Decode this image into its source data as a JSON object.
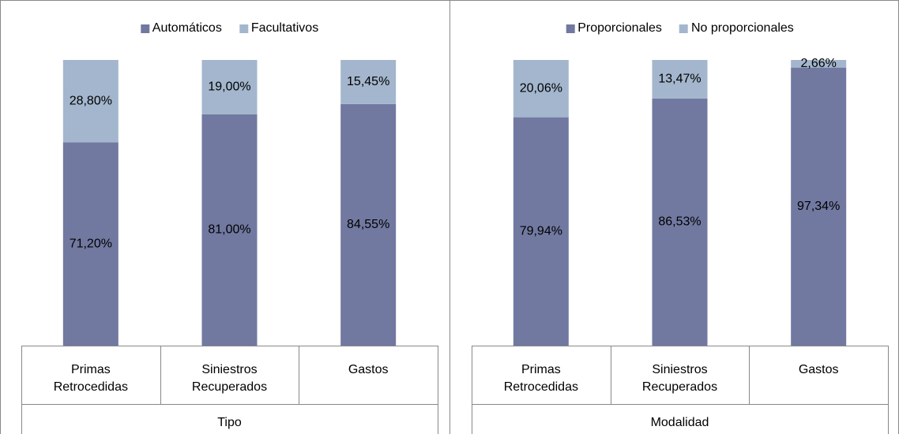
{
  "chart_data": [
    {
      "type": "stacked_bar",
      "xlabel": "Tipo",
      "categories": [
        "Primas Retrocedidas",
        "Siniestros Recuperados",
        "Gastos"
      ],
      "ylim": [
        0,
        100
      ],
      "series": [
        {
          "name": "Automáticos",
          "color": "#7179a1",
          "values": [
            71.2,
            81.0,
            84.55
          ],
          "value_labels": [
            "71,20%",
            "81,00%",
            "84,55%"
          ]
        },
        {
          "name": "Facultativos",
          "color": "#a3b6cd",
          "values": [
            28.8,
            19.0,
            15.45
          ],
          "value_labels": [
            "28,80%",
            "19,00%",
            "15,45%"
          ]
        }
      ]
    },
    {
      "type": "stacked_bar",
      "xlabel": "Modalidad",
      "categories": [
        "Primas Retrocedidas",
        "Siniestros Recuperados",
        "Gastos"
      ],
      "ylim": [
        0,
        100
      ],
      "series": [
        {
          "name": "Proporcionales",
          "color": "#7179a1",
          "values": [
            79.94,
            86.53,
            97.34
          ],
          "value_labels": [
            "79,94%",
            "86,53%",
            "97,34%"
          ]
        },
        {
          "name": "No proporcionales",
          "color": "#a3b6cd",
          "values": [
            20.06,
            13.47,
            2.66
          ],
          "value_labels": [
            "20,06%",
            "13,47%",
            "2,66%"
          ]
        }
      ]
    }
  ]
}
